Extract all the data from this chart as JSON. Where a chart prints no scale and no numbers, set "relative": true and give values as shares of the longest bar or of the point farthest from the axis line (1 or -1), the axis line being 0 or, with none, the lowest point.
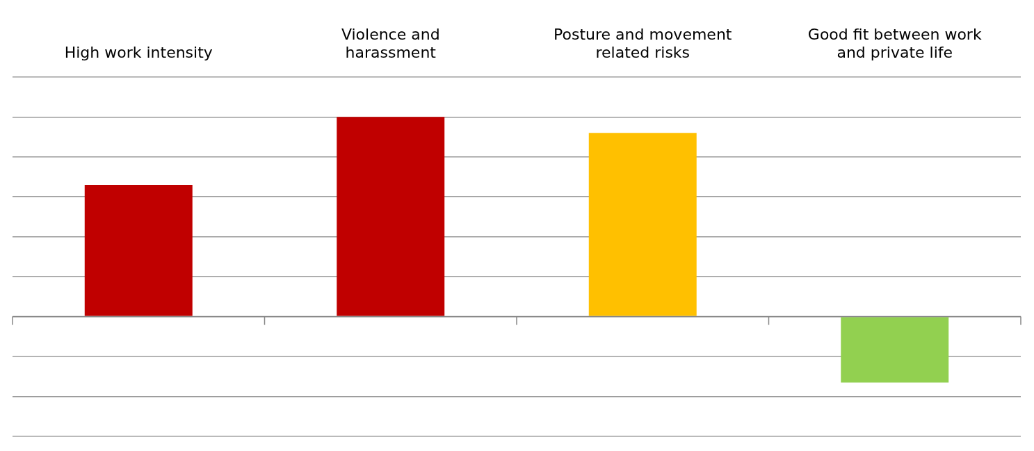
{
  "chart_data": {
    "type": "bar",
    "relative": true,
    "grid": "y",
    "categories": [
      "High work intensity",
      "Violence and harassment",
      "Posture and movement related risks",
      "Good fit between work and private life"
    ],
    "values": [
      0.66,
      1,
      0.92,
      -0.33
    ],
    "colors": [
      "#c00000",
      "#c00000",
      "#ffc000",
      "#92d050"
    ]
  }
}
